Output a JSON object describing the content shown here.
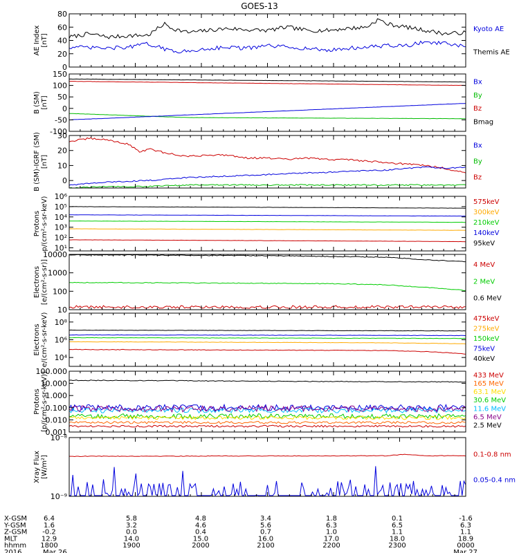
{
  "title": "GOES-13",
  "chart_data": [
    {
      "type": "line",
      "ylabel": [
        "AE Index",
        "[nT]"
      ],
      "ylim": [
        0,
        80
      ],
      "yscale": "linear",
      "yticks": [
        0,
        20,
        40,
        60,
        80
      ],
      "ytick_labels": [
        "0",
        "20",
        "40",
        "60",
        "80"
      ],
      "legend": [
        {
          "label": "Kyoto AE",
          "color": "#0000dd"
        },
        {
          "label": "Themis AE",
          "color": "#000000"
        }
      ],
      "series": [
        {
          "color": "#000000",
          "x": [
            0,
            0.05,
            0.1,
            0.15,
            0.2,
            0.24,
            0.26,
            0.3,
            0.35,
            0.4,
            0.45,
            0.5,
            0.55,
            0.6,
            0.65,
            0.7,
            0.75,
            0.78,
            0.8,
            0.85,
            0.9,
            0.95,
            1
          ],
          "y": [
            45,
            50,
            45,
            47,
            48,
            65,
            58,
            52,
            55,
            58,
            56,
            55,
            60,
            55,
            55,
            58,
            60,
            72,
            65,
            60,
            55,
            50,
            52
          ],
          "noise": 3
        },
        {
          "color": "#0000dd",
          "x": [
            0,
            0.1,
            0.15,
            0.2,
            0.25,
            0.3,
            0.35,
            0.4,
            0.45,
            0.5,
            0.55,
            0.6,
            0.65,
            0.7,
            0.75,
            0.8,
            0.85,
            0.9,
            0.95,
            1
          ],
          "y": [
            30,
            28,
            30,
            35,
            25,
            23,
            28,
            30,
            28,
            32,
            30,
            28,
            25,
            28,
            30,
            32,
            32,
            38,
            35,
            30
          ],
          "noise": 3
        }
      ]
    },
    {
      "type": "line",
      "ylabel": [
        "B (SM)",
        "[nT]"
      ],
      "ylim": [
        -100,
        150
      ],
      "yscale": "linear",
      "yticks": [
        -100,
        -50,
        0,
        50,
        100,
        150
      ],
      "ytick_labels": [
        "-100",
        "-50",
        "0",
        "50",
        "100",
        "150"
      ],
      "legend": [
        {
          "label": "Bx",
          "color": "#0000dd"
        },
        {
          "label": "By",
          "color": "#00bb00"
        },
        {
          "label": "Bz",
          "color": "#cc0000"
        },
        {
          "label": "Bmag",
          "color": "#000000"
        }
      ],
      "series": [
        {
          "color": "#000000",
          "x": [
            0,
            1
          ],
          "y": [
            128,
            115
          ],
          "noise": 0.5
        },
        {
          "color": "#cc0000",
          "x": [
            0,
            1
          ],
          "y": [
            118,
            100
          ],
          "noise": 0.5
        },
        {
          "color": "#00bb00",
          "x": [
            0,
            0.3,
            1
          ],
          "y": [
            -22,
            -40,
            -45
          ],
          "noise": 0.5
        },
        {
          "color": "#0000dd",
          "x": [
            0,
            1
          ],
          "y": [
            -50,
            22
          ],
          "noise": 0.5
        }
      ]
    },
    {
      "type": "line",
      "ylabel": [
        "B (SM)-IGRF (SM)",
        "[nT]"
      ],
      "ylim": [
        -5,
        30
      ],
      "yscale": "linear",
      "yticks": [
        0,
        10,
        20,
        30
      ],
      "ytick_labels": [
        "0",
        "10",
        "20",
        "30"
      ],
      "legend": [
        {
          "label": "Bx",
          "color": "#0000dd"
        },
        {
          "label": "By",
          "color": "#00bb00"
        },
        {
          "label": "Bz",
          "color": "#cc0000"
        }
      ],
      "series": [
        {
          "color": "#cc0000",
          "x": [
            0,
            0.05,
            0.1,
            0.15,
            0.18,
            0.2,
            0.25,
            0.3,
            0.35,
            0.4,
            0.45,
            0.5,
            0.55,
            0.6,
            0.65,
            0.7,
            0.75,
            0.8,
            0.85,
            0.9,
            0.95,
            1
          ],
          "y": [
            26,
            28,
            27,
            24,
            19,
            21,
            18,
            16,
            17,
            17,
            15,
            15,
            14,
            15,
            14,
            14,
            13,
            12,
            11,
            10,
            8,
            5
          ],
          "noise": 0.6
        },
        {
          "color": "#0000dd",
          "x": [
            0,
            0.1,
            0.2,
            0.3,
            0.4,
            0.5,
            0.6,
            0.7,
            0.8,
            0.85,
            0.9,
            0.95,
            1
          ],
          "y": [
            -3,
            -1,
            0,
            2,
            3,
            4,
            5,
            6,
            7,
            8,
            9,
            8,
            9
          ],
          "noise": 0.4
        },
        {
          "color": "#00bb00",
          "x": [
            0,
            0.1,
            0.2,
            0.3,
            0.5,
            0.7,
            0.9,
            1
          ],
          "y": [
            -5,
            -4,
            -4,
            -3,
            -3,
            -3,
            -3,
            -3
          ],
          "noise": 0.4
        }
      ]
    },
    {
      "type": "line",
      "ylabel": [
        "Protons",
        "p/(cm²-s-sr-keV)"
      ],
      "ylim": [
        5,
        1000000
      ],
      "yscale": "log",
      "yticks": [
        10,
        100,
        1000,
        10000,
        100000,
        1000000
      ],
      "ytick_labels": [
        "10¹",
        "10²",
        "10³",
        "10⁴",
        "10⁵",
        "10⁶"
      ],
      "legend": [
        {
          "label": "575keV",
          "color": "#cc0000"
        },
        {
          "label": "300keV",
          "color": "#ffaa00"
        },
        {
          "label": "210keV",
          "color": "#00cc00"
        },
        {
          "label": "140keV",
          "color": "#0000dd"
        },
        {
          "label": "95keV",
          "color": "#000000"
        }
      ],
      "series": [
        {
          "color": "#000000",
          "x": [
            0,
            1
          ],
          "y": [
            100000,
            70000
          ],
          "noise": 0.01
        },
        {
          "color": "#0000dd",
          "x": [
            0,
            1
          ],
          "y": [
            16000,
            12000
          ],
          "noise": 0.01
        },
        {
          "color": "#00cc00",
          "x": [
            0,
            1
          ],
          "y": [
            4000,
            3000
          ],
          "noise": 0.01
        },
        {
          "color": "#ffaa00",
          "x": [
            0,
            1
          ],
          "y": [
            700,
            500
          ],
          "noise": 0.01
        },
        {
          "color": "#cc0000",
          "x": [
            0,
            1
          ],
          "y": [
            60,
            40
          ],
          "noise": 0.01
        }
      ]
    },
    {
      "type": "line",
      "ylabel": [
        "Electrons",
        "[e/(cm²-s-sr)]"
      ],
      "ylim": [
        10,
        10000
      ],
      "yscale": "log",
      "yticks": [
        10,
        100,
        1000,
        10000
      ],
      "ytick_labels": [
        "10",
        "100",
        "1000",
        "10000"
      ],
      "legend": [
        {
          "label": "4 MeV",
          "color": "#cc0000"
        },
        {
          "label": "2 MeV",
          "color": "#00cc00"
        },
        {
          "label": "0.6 MeV",
          "color": "#000000"
        }
      ],
      "series": [
        {
          "color": "#000000",
          "x": [
            0,
            0.5,
            0.8,
            0.9,
            1
          ],
          "y": [
            9500,
            8500,
            7000,
            5000,
            4000
          ],
          "noise": 0.02
        },
        {
          "color": "#00cc00",
          "x": [
            0,
            0.5,
            0.7,
            0.8,
            0.9,
            1
          ],
          "y": [
            300,
            270,
            250,
            220,
            160,
            110
          ],
          "noise": 0.02
        },
        {
          "color": "#cc0000",
          "x": [
            0,
            1
          ],
          "y": [
            14,
            14
          ],
          "noise": 0.08
        }
      ]
    },
    {
      "type": "line",
      "ylabel": [
        "Electrons",
        "e/(cm²-s-sr-keV)"
      ],
      "ylim": [
        1000,
        1000000000
      ],
      "yscale": "log",
      "yticks": [
        10000,
        1000000,
        100000000
      ],
      "ytick_labels": [
        "10⁴",
        "10⁶",
        "10⁸"
      ],
      "legend": [
        {
          "label": "475keV",
          "color": "#cc0000"
        },
        {
          "label": "275keV",
          "color": "#ffaa00"
        },
        {
          "label": "150keV",
          "color": "#00cc00"
        },
        {
          "label": "75keV",
          "color": "#0000dd"
        },
        {
          "label": "40keV",
          "color": "#000000"
        }
      ],
      "series": [
        {
          "color": "#000000",
          "x": [
            0,
            1
          ],
          "y": [
            12000000,
            10000000
          ],
          "noise": 0.02
        },
        {
          "color": "#0000dd",
          "x": [
            0,
            1
          ],
          "y": [
            3500000,
            3000000
          ],
          "noise": 0.02
        },
        {
          "color": "#00cc00",
          "x": [
            0,
            1
          ],
          "y": [
            1700000,
            1400000
          ],
          "noise": 0.02
        },
        {
          "color": "#ffaa00",
          "x": [
            0,
            0.8,
            1
          ],
          "y": [
            600000,
            450000,
            350000
          ],
          "noise": 0.02
        },
        {
          "color": "#cc0000",
          "x": [
            0,
            0.8,
            0.9,
            1
          ],
          "y": [
            80000,
            60000,
            45000,
            25000
          ],
          "noise": 0.03
        }
      ]
    },
    {
      "type": "line",
      "ylabel": [
        "Protons",
        "[p/(cm²-s-sr-keV)]"
      ],
      "ylim": [
        0.001,
        100
      ],
      "yscale": "log",
      "yticks": [
        0.001,
        0.01,
        0.1,
        1,
        10,
        100
      ],
      "ytick_labels": [
        "0.001",
        "0.010",
        "0.100",
        "1.000",
        "10.000",
        "100.000"
      ],
      "legend": [
        {
          "label": "433 MeV",
          "color": "#cc0000"
        },
        {
          "label": "165 MeV",
          "color": "#ff6600"
        },
        {
          "label": "63.1 MeV",
          "color": "#ffdd00"
        },
        {
          "label": "30.6 MeV",
          "color": "#00cc00"
        },
        {
          "label": "11.6 MeV",
          "color": "#00bbff"
        },
        {
          "label": "6.5 MeV",
          "color": "#880088"
        },
        {
          "label": "2.5 MeV",
          "color": "#000000"
        }
      ],
      "series": [
        {
          "color": "#000000",
          "x": [
            0,
            0.5,
            1
          ],
          "y": [
            18,
            15,
            13
          ],
          "noise": 0.03
        },
        {
          "color": "#0000dd",
          "x": [
            0,
            1
          ],
          "y": [
            0.1,
            0.1
          ],
          "noise": 0.25
        },
        {
          "color": "#00bbff",
          "x": [
            0,
            1
          ],
          "y": [
            0.06,
            0.06
          ],
          "noise": 0.2
        },
        {
          "color": "#880088",
          "x": [
            0,
            1
          ],
          "y": [
            0.08,
            0.08
          ],
          "noise": 0.25
        },
        {
          "color": "#00cc00",
          "x": [
            0,
            1
          ],
          "y": [
            0.02,
            0.02
          ],
          "noise": 0.2
        },
        {
          "color": "#ffdd00",
          "x": [
            0,
            1
          ],
          "y": [
            0.015,
            0.015
          ],
          "noise": 0.15
        },
        {
          "color": "#ff6600",
          "x": [
            0,
            1
          ],
          "y": [
            0.006,
            0.006
          ],
          "noise": 0.1
        },
        {
          "color": "#cc0000",
          "x": [
            0,
            1
          ],
          "y": [
            0.003,
            0.003
          ],
          "noise": 0.08
        }
      ]
    },
    {
      "type": "line",
      "ylabel": [
        "Xray Flux",
        "[W/m²]"
      ],
      "ylim": [
        1e-09,
        1e-08
      ],
      "yscale": "log",
      "yticks": [
        1e-09,
        1e-08
      ],
      "ytick_labels": [
        "10⁻⁹",
        "10⁻⁸"
      ],
      "legend": [
        {
          "label": "0.1-0.8 nm",
          "color": "#cc0000"
        },
        {
          "label": "0.05-0.4 nm",
          "color": "#0000dd"
        }
      ],
      "series": [
        {
          "color": "#cc0000",
          "x": [
            0,
            0.8,
            0.85,
            0.9,
            1
          ],
          "y": [
            4.8e-09,
            4.9e-09,
            5.2e-09,
            4.9e-09,
            4.9e-09
          ],
          "noise": 0.005
        },
        {
          "color": "#0000dd",
          "x": [
            0,
            1
          ],
          "y": [
            1.03e-09,
            1.03e-09
          ],
          "noise": 0.0,
          "spikes": true
        }
      ]
    }
  ],
  "axis_footer": {
    "rows": [
      {
        "label": "X-GSM",
        "values": [
          "6.4",
          "5.8",
          "4.8",
          "3.4",
          "1.8",
          "0.1",
          "-1.6"
        ]
      },
      {
        "label": "Y-GSM",
        "values": [
          "1.6",
          "3.2",
          "4.6",
          "5.6",
          "6.3",
          "6.5",
          "6.3"
        ]
      },
      {
        "label": "Z-GSM",
        "values": [
          "-0.2",
          "0.0",
          "0.4",
          "0.7",
          "1.0",
          "1.1",
          "1.1"
        ]
      },
      {
        "label": "MLT",
        "values": [
          "12.9",
          "14.0",
          "15.0",
          "16.0",
          "17.0",
          "18.0",
          "18.9"
        ]
      },
      {
        "label": "hhmm",
        "values": [
          "1800",
          "1900",
          "2000",
          "2100",
          "2200",
          "2300",
          "0000"
        ]
      },
      {
        "label": "2016",
        "values": [
          "Mar 26",
          "",
          "",
          "",
          "",
          "",
          "Mar 27"
        ]
      }
    ]
  }
}
